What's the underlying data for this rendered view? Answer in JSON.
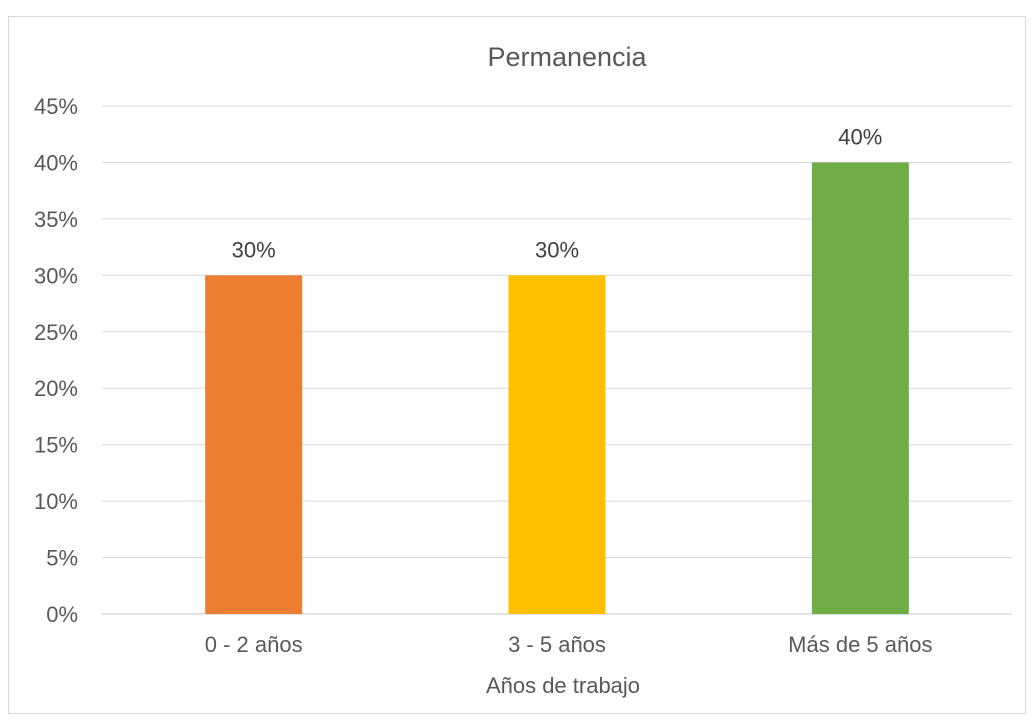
{
  "chart_data": {
    "type": "bar",
    "title": "Permanencia",
    "xlabel": "Años de trabajo",
    "ylabel": "",
    "categories": [
      "0 - 2 años",
      "3 - 5 años",
      "Más de 5 años"
    ],
    "values": [
      30,
      30,
      40
    ],
    "data_labels": [
      "30%",
      "30%",
      "40%"
    ],
    "colors": [
      "#ED7D31",
      "#FFC000",
      "#70AD47"
    ],
    "ylim": [
      0,
      45
    ],
    "ytick_step": 5,
    "ytick_labels": [
      "0%",
      "5%",
      "10%",
      "15%",
      "20%",
      "25%",
      "30%",
      "35%",
      "40%",
      "45%"
    ],
    "grid": true,
    "legend": "none"
  }
}
